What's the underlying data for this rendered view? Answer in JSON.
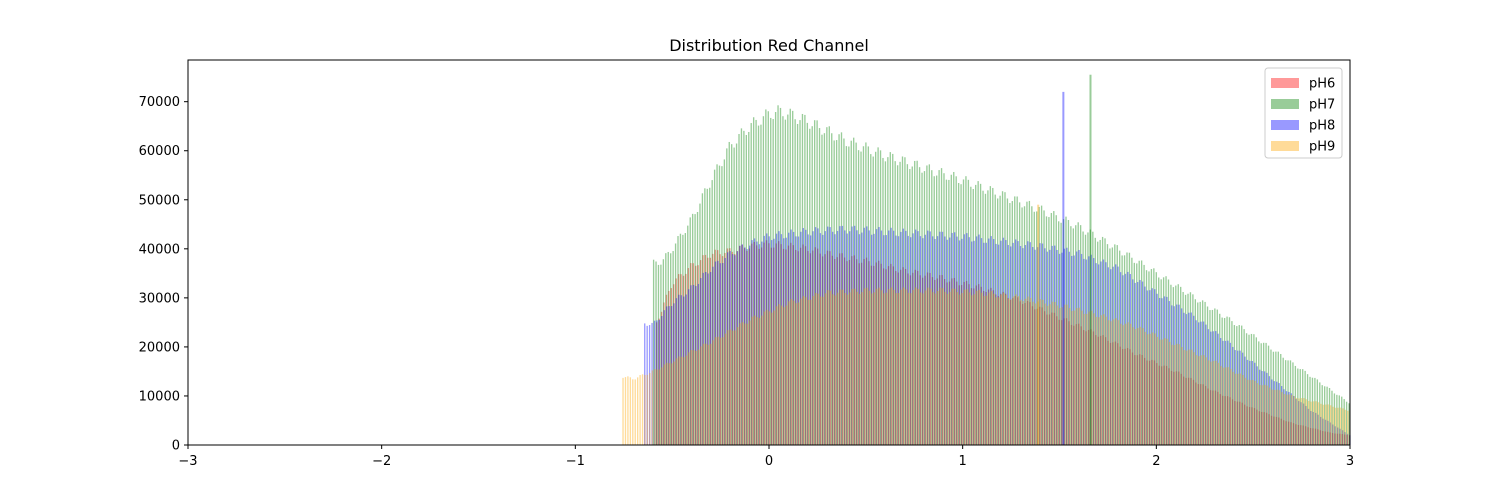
{
  "chart_data": {
    "type": "bar",
    "title": "Distribution Red Channel",
    "xlabel": "",
    "ylabel": "",
    "xlim": [
      -3,
      3
    ],
    "ylim": [
      0,
      78500
    ],
    "xticks": [
      -3,
      -2,
      -1,
      0,
      1,
      2,
      3
    ],
    "xtick_labels": [
      "−3",
      "−2",
      "−1",
      "0",
      "1",
      "2",
      "3"
    ],
    "yticks": [
      0,
      10000,
      20000,
      30000,
      40000,
      50000,
      60000,
      70000
    ],
    "ytick_labels": [
      "0",
      "10000",
      "20000",
      "30000",
      "40000",
      "50000",
      "60000",
      "70000"
    ],
    "grid": false,
    "legend": "top-right",
    "bin_width": 0.0126,
    "colors": {
      "pH6": "#ff0000",
      "pH7": "#008000",
      "pH8": "#0000ff",
      "pH9": "#ffa500"
    },
    "bar_alpha": 0.4,
    "series": [
      {
        "name": "pH6",
        "color": "#ff0000",
        "range": [
          -0.58,
          3.0
        ],
        "points": [
          [
            -0.58,
            25000
          ],
          [
            -0.5,
            33000
          ],
          [
            -0.4,
            36500
          ],
          [
            -0.3,
            39000
          ],
          [
            -0.2,
            39500
          ],
          [
            -0.1,
            40500
          ],
          [
            0.0,
            41000
          ],
          [
            0.1,
            40500
          ],
          [
            0.2,
            40000
          ],
          [
            0.3,
            39000
          ],
          [
            0.5,
            37500
          ],
          [
            0.7,
            35500
          ],
          [
            0.9,
            34000
          ],
          [
            1.1,
            32000
          ],
          [
            1.3,
            29500
          ],
          [
            1.5,
            26000
          ],
          [
            1.7,
            22500
          ],
          [
            1.9,
            18500
          ],
          [
            2.1,
            15000
          ],
          [
            2.3,
            11000
          ],
          [
            2.5,
            7500
          ],
          [
            2.7,
            4500
          ],
          [
            2.9,
            2500
          ],
          [
            3.0,
            2000
          ]
        ]
      },
      {
        "name": "pH7",
        "color": "#008000",
        "range": [
          -0.6,
          3.0
        ],
        "points": [
          [
            -0.6,
            37000
          ],
          [
            -0.55,
            37500
          ],
          [
            -0.5,
            40000
          ],
          [
            -0.4,
            46000
          ],
          [
            -0.3,
            54000
          ],
          [
            -0.2,
            61000
          ],
          [
            -0.1,
            65000
          ],
          [
            0.0,
            67500
          ],
          [
            0.05,
            68000
          ],
          [
            0.1,
            67500
          ],
          [
            0.2,
            66000
          ],
          [
            0.3,
            64000
          ],
          [
            0.4,
            62000
          ],
          [
            0.6,
            59000
          ],
          [
            0.8,
            56500
          ],
          [
            1.0,
            54000
          ],
          [
            1.2,
            51000
          ],
          [
            1.4,
            48000
          ],
          [
            1.6,
            44500
          ],
          [
            1.8,
            40000
          ],
          [
            2.0,
            35000
          ],
          [
            2.2,
            30000
          ],
          [
            2.4,
            25000
          ],
          [
            2.6,
            19500
          ],
          [
            2.8,
            14000
          ],
          [
            3.0,
            8500
          ]
        ]
      },
      {
        "name": "pH8",
        "color": "#0000ff",
        "range": [
          -0.65,
          3.0
        ],
        "points": [
          [
            -0.65,
            25000
          ],
          [
            -0.6,
            24500
          ],
          [
            -0.5,
            29000
          ],
          [
            -0.4,
            32000
          ],
          [
            -0.3,
            36000
          ],
          [
            -0.2,
            39000
          ],
          [
            -0.1,
            41000
          ],
          [
            0.0,
            42500
          ],
          [
            0.2,
            43500
          ],
          [
            0.4,
            44000
          ],
          [
            0.6,
            43500
          ],
          [
            0.8,
            43000
          ],
          [
            1.0,
            42500
          ],
          [
            1.2,
            41500
          ],
          [
            1.4,
            40500
          ],
          [
            1.6,
            39000
          ],
          [
            1.8,
            36000
          ],
          [
            2.0,
            31000
          ],
          [
            2.2,
            26000
          ],
          [
            2.4,
            20000
          ],
          [
            2.6,
            13500
          ],
          [
            2.8,
            7000
          ],
          [
            3.0,
            2000
          ]
        ]
      },
      {
        "name": "pH9",
        "color": "#ffa500",
        "range": [
          -0.76,
          3.0
        ],
        "points": [
          [
            -0.76,
            14000
          ],
          [
            -0.7,
            13500
          ],
          [
            -0.6,
            15000
          ],
          [
            -0.5,
            17000
          ],
          [
            -0.3,
            21000
          ],
          [
            -0.1,
            25500
          ],
          [
            0.1,
            29000
          ],
          [
            0.3,
            31000
          ],
          [
            0.5,
            31500
          ],
          [
            0.7,
            31500
          ],
          [
            0.9,
            31500
          ],
          [
            1.1,
            31000
          ],
          [
            1.3,
            30000
          ],
          [
            1.5,
            28500
          ],
          [
            1.7,
            26500
          ],
          [
            1.9,
            24000
          ],
          [
            2.1,
            20500
          ],
          [
            2.3,
            17000
          ],
          [
            2.5,
            13000
          ],
          [
            2.7,
            10000
          ],
          [
            2.9,
            8000
          ],
          [
            3.0,
            7000
          ]
        ]
      }
    ],
    "spikes": [
      {
        "series": "pH8",
        "x": 1.52,
        "y": 72000
      },
      {
        "series": "pH7",
        "x": 1.66,
        "y": 75500
      },
      {
        "series": "pH9",
        "x": 1.39,
        "y": 49000
      }
    ]
  }
}
